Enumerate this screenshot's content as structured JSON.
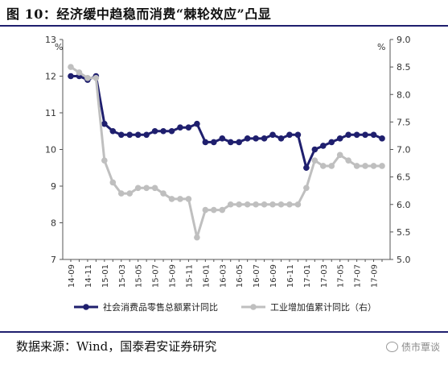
{
  "header": {
    "title": "图 10：经济缓中趋稳而消费“棘轮效应”凸显"
  },
  "footer": {
    "source": "数据来源：Wind，国泰君安证券研究",
    "watermark": "债市覃谈"
  },
  "chart_data": {
    "type": "line",
    "left_axis": {
      "unit": "%",
      "ylim": [
        7,
        13
      ],
      "ticks": [
        "7",
        "8",
        "9",
        "10",
        "11",
        "12",
        "13"
      ]
    },
    "right_axis": {
      "unit": "%",
      "ylim": [
        5.0,
        9.0
      ],
      "ticks": [
        "5.0",
        "5.5",
        "6.0",
        "6.5",
        "7.0",
        "7.5",
        "8.0",
        "8.5",
        "9.0"
      ]
    },
    "x": [
      "14-09",
      "14-10",
      "14-11",
      "14-12",
      "15-01",
      "15-02",
      "15-03",
      "15-04",
      "15-05",
      "15-06",
      "15-07",
      "15-08",
      "15-09",
      "15-10",
      "15-11",
      "15-12",
      "16-01",
      "16-02",
      "16-03",
      "16-04",
      "16-05",
      "16-06",
      "16-07",
      "16-08",
      "16-09",
      "16-10",
      "16-11",
      "16-12",
      "17-01",
      "17-02",
      "17-03",
      "17-04",
      "17-05",
      "17-06",
      "17-07",
      "17-08",
      "17-09",
      "17-10"
    ],
    "x_tick_labels": [
      "14-09",
      "14-11",
      "15-01",
      "15-03",
      "15-05",
      "15-07",
      "15-09",
      "15-11",
      "16-01",
      "16-03",
      "16-05",
      "16-07",
      "16-09",
      "16-11",
      "17-01",
      "17-03",
      "17-05",
      "17-07",
      "17-09"
    ],
    "grid": false,
    "legend_position": "bottom",
    "series": [
      {
        "name": "社会消费品零售总额累计同比",
        "axis": "left",
        "color": "#1f1f6e",
        "values": [
          12.0,
          12.0,
          11.9,
          12.0,
          10.7,
          10.5,
          10.4,
          10.4,
          10.4,
          10.4,
          10.5,
          10.5,
          10.5,
          10.6,
          10.6,
          10.7,
          10.2,
          10.2,
          10.3,
          10.2,
          10.2,
          10.3,
          10.3,
          10.3,
          10.4,
          10.3,
          10.4,
          10.4,
          9.5,
          10.0,
          10.1,
          10.2,
          10.3,
          10.4,
          10.4,
          10.4,
          10.4,
          10.3
        ]
      },
      {
        "name": "工业增加值累计同比（右）",
        "axis": "right",
        "color": "#bfbfbf",
        "values": [
          8.5,
          8.4,
          8.3,
          8.3,
          6.8,
          6.4,
          6.2,
          6.2,
          6.3,
          6.3,
          6.3,
          6.2,
          6.1,
          6.1,
          6.1,
          5.4,
          5.9,
          5.9,
          5.9,
          6.0,
          6.0,
          6.0,
          6.0,
          6.0,
          6.0,
          6.0,
          6.0,
          6.0,
          6.3,
          6.8,
          6.7,
          6.7,
          6.9,
          6.8,
          6.7,
          6.7,
          6.7,
          6.7
        ]
      }
    ]
  }
}
